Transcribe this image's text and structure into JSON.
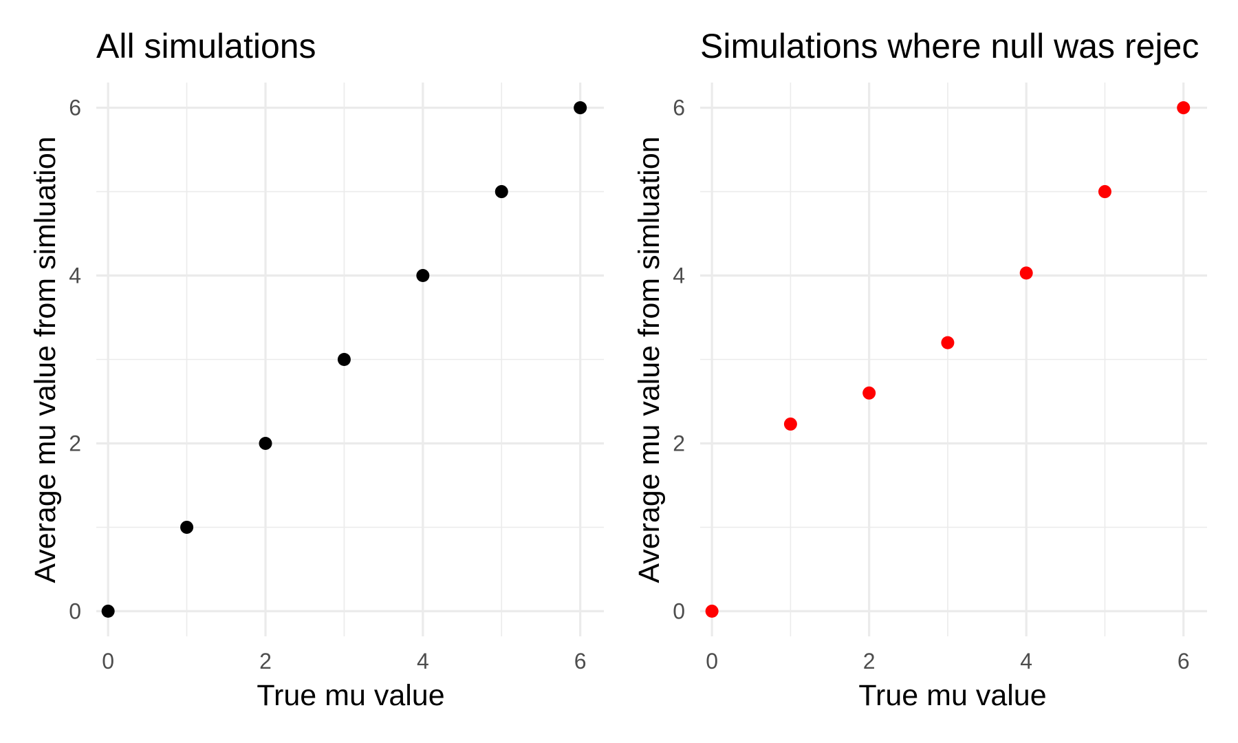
{
  "chart_data": [
    {
      "type": "scatter",
      "title": "All simulations",
      "xlabel": "True mu value",
      "ylabel": "Average mu value from simluation",
      "xlim": [
        -0.15,
        6.3
      ],
      "ylim": [
        -0.3,
        6.3
      ],
      "x_ticks": [
        0,
        2,
        4,
        6
      ],
      "y_ticks": [
        0,
        2,
        4,
        6
      ],
      "grid": true,
      "point_color": "#000000",
      "x": [
        0,
        1,
        2,
        3,
        4,
        5,
        6
      ],
      "y": [
        0.0,
        1.0,
        2.0,
        3.0,
        4.0,
        5.0,
        6.0
      ]
    },
    {
      "type": "scatter",
      "title": "Simulations where null was rejec",
      "xlabel": "True mu value",
      "ylabel": "Average mu value from simluation",
      "xlim": [
        -0.15,
        6.3
      ],
      "ylim": [
        -0.3,
        6.3
      ],
      "x_ticks": [
        0,
        2,
        4,
        6
      ],
      "y_ticks": [
        0,
        2,
        4,
        6
      ],
      "grid": true,
      "point_color": "#ff0000",
      "x": [
        0,
        1,
        2,
        3,
        4,
        5,
        6
      ],
      "y": [
        0.0,
        2.23,
        2.6,
        3.2,
        4.03,
        5.0,
        6.0
      ]
    }
  ]
}
